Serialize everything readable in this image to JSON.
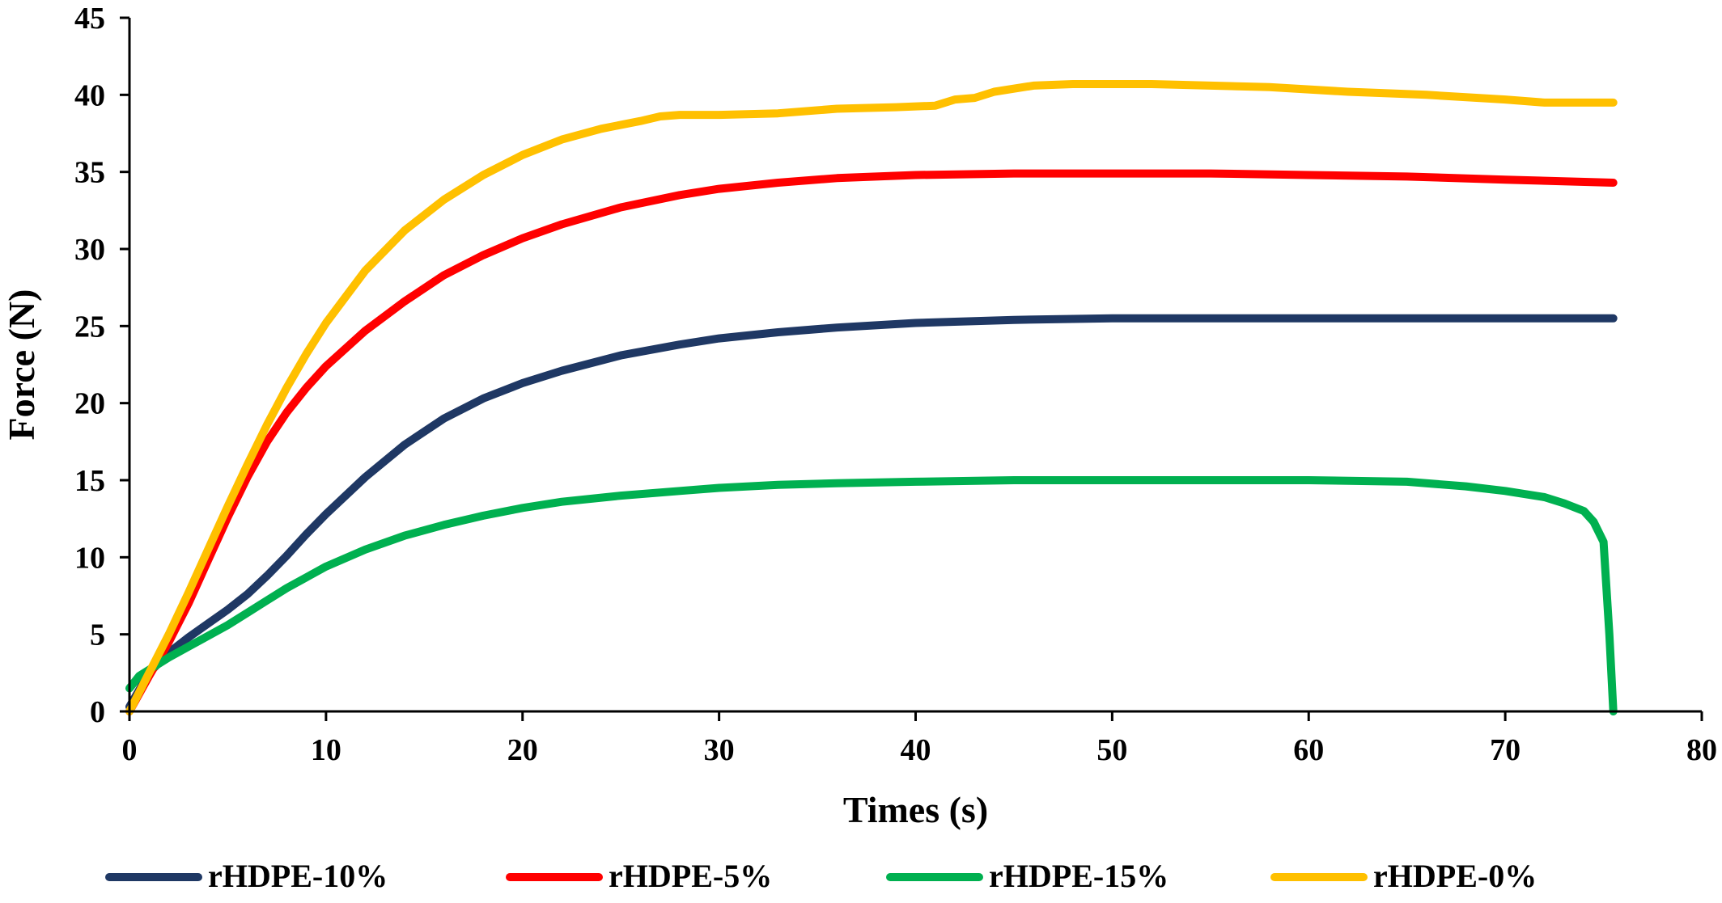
{
  "chart_data": {
    "type": "line",
    "title": "",
    "xlabel": "Times (s)",
    "ylabel": "Force (N)",
    "xlim": [
      0,
      80
    ],
    "ylim": [
      0,
      45
    ],
    "xticks": [
      0,
      10,
      20,
      30,
      40,
      50,
      60,
      70,
      80
    ],
    "yticks": [
      0,
      5,
      10,
      15,
      20,
      25,
      30,
      35,
      40,
      45
    ],
    "grid": false,
    "legend_position": "bottom",
    "series": [
      {
        "name": "rHDPE-10%",
        "color": "#1f3864",
        "x": [
          0,
          1,
          2,
          3,
          4,
          5,
          6,
          7,
          8,
          9,
          10,
          12,
          14,
          16,
          18,
          20,
          22,
          25,
          28,
          30,
          33,
          36,
          40,
          45,
          50,
          55,
          60,
          65,
          70,
          75.5
        ],
        "y": [
          0.3,
          2.5,
          3.8,
          4.8,
          5.7,
          6.6,
          7.6,
          8.8,
          10.1,
          11.5,
          12.8,
          15.2,
          17.3,
          19.0,
          20.3,
          21.3,
          22.1,
          23.1,
          23.8,
          24.2,
          24.6,
          24.9,
          25.2,
          25.4,
          25.5,
          25.5,
          25.5,
          25.5,
          25.5,
          25.5
        ]
      },
      {
        "name": "rHDPE-5%",
        "color": "#ff0000",
        "x": [
          0,
          1,
          2,
          3,
          4,
          5,
          6,
          7,
          8,
          9,
          10,
          12,
          14,
          16,
          18,
          20,
          22,
          25,
          28,
          30,
          33,
          36,
          40,
          45,
          50,
          55,
          60,
          65,
          70,
          75.5
        ],
        "y": [
          0,
          2.3,
          4.5,
          7.0,
          9.8,
          12.6,
          15.2,
          17.5,
          19.4,
          21.0,
          22.4,
          24.7,
          26.6,
          28.3,
          29.6,
          30.7,
          31.6,
          32.7,
          33.5,
          33.9,
          34.3,
          34.6,
          34.8,
          34.9,
          34.9,
          34.9,
          34.8,
          34.7,
          34.5,
          34.3
        ]
      },
      {
        "name": "rHDPE-15%",
        "color": "#00b050",
        "x": [
          0,
          0.5,
          1,
          2,
          3,
          4,
          5,
          6,
          7,
          8,
          10,
          12,
          14,
          16,
          18,
          20,
          22,
          25,
          28,
          30,
          33,
          36,
          40,
          45,
          50,
          55,
          60,
          65,
          68,
          70,
          72,
          73,
          74,
          74.5,
          75,
          75.3,
          75.5
        ],
        "y": [
          1.5,
          2.3,
          2.7,
          3.5,
          4.2,
          4.9,
          5.6,
          6.4,
          7.2,
          8.0,
          9.4,
          10.5,
          11.4,
          12.1,
          12.7,
          13.2,
          13.6,
          14.0,
          14.3,
          14.5,
          14.7,
          14.8,
          14.9,
          15.0,
          15.0,
          15.0,
          15.0,
          14.9,
          14.6,
          14.3,
          13.9,
          13.5,
          13.0,
          12.3,
          11.0,
          5.0,
          0
        ]
      },
      {
        "name": "rHDPE-0%",
        "color": "#ffc000",
        "x": [
          0,
          1,
          2,
          3,
          4,
          5,
          6,
          7,
          8,
          9,
          10,
          12,
          14,
          16,
          18,
          20,
          22,
          24,
          26,
          27,
          28,
          30,
          33,
          36,
          39,
          41,
          42,
          43,
          44,
          46,
          48,
          50,
          52,
          55,
          58,
          62,
          66,
          70,
          72,
          75.5
        ],
        "y": [
          0,
          2.5,
          5.0,
          7.7,
          10.5,
          13.3,
          16.0,
          18.6,
          21.0,
          23.2,
          25.2,
          28.6,
          31.2,
          33.2,
          34.8,
          36.1,
          37.1,
          37.8,
          38.3,
          38.6,
          38.7,
          38.7,
          38.8,
          39.1,
          39.2,
          39.3,
          39.7,
          39.8,
          40.2,
          40.6,
          40.7,
          40.7,
          40.7,
          40.6,
          40.5,
          40.2,
          40.0,
          39.7,
          39.5,
          39.5
        ]
      }
    ]
  }
}
